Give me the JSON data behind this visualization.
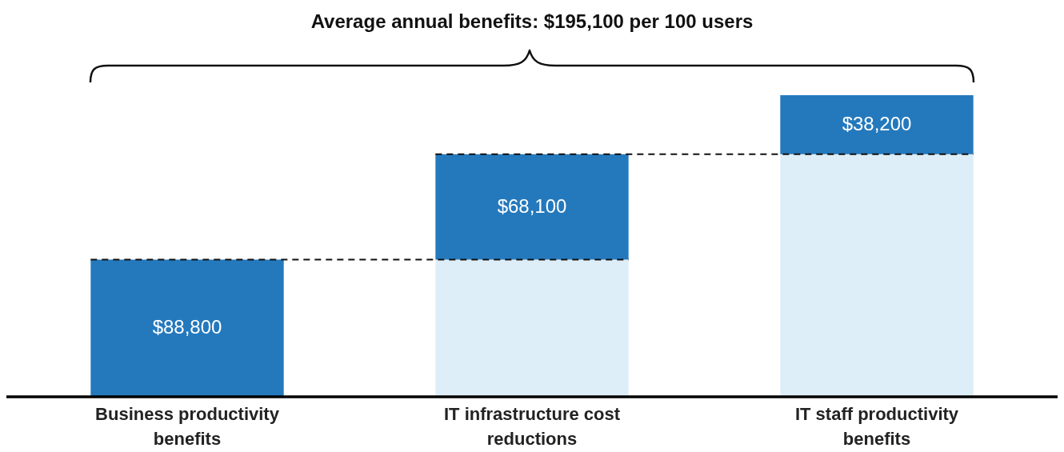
{
  "chart_data": {
    "type": "bar",
    "title": "Average annual benefits: $195,100 per 100 users",
    "categories": [
      "Business productivity benefits",
      "IT infrastructure cost reductions",
      "IT staff productivity benefits"
    ],
    "stacked": true,
    "ref_lines": [
      {
        "axis": "y",
        "value": 88800,
        "line_style": "dashed",
        "color": "#111111"
      },
      {
        "axis": "y",
        "value": 156900,
        "line_style": "dashed",
        "color": "#111111"
      }
    ],
    "series": [
      {
        "color": "#ddeef8",
        "values": [
          null,
          88800,
          156900
        ]
      },
      {
        "color": "#2479bd",
        "values": [
          88800,
          68100,
          38200
        ],
        "value_labels": [
          "$88,800",
          "$68,100",
          "$38,200"
        ]
      }
    ]
  }
}
